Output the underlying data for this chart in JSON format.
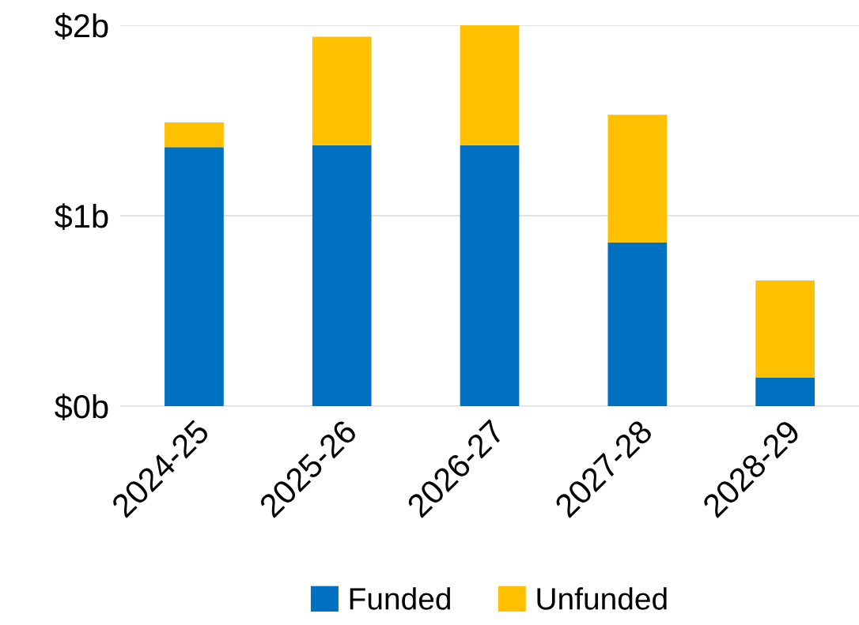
{
  "chart_data": {
    "type": "bar",
    "stacked": true,
    "categories": [
      "2024-25",
      "2025-26",
      "2026-27",
      "2027-28",
      "2028-29"
    ],
    "series": [
      {
        "name": "Funded",
        "color": "#0070c0",
        "values": [
          1.36,
          1.37,
          1.37,
          0.86,
          0.15
        ]
      },
      {
        "name": "Unfunded",
        "color": "#ffc000",
        "values": [
          0.13,
          0.57,
          0.63,
          0.67,
          0.51
        ]
      }
    ],
    "ylim": [
      0,
      2
    ],
    "yticks": [
      {
        "value": 0,
        "label": "$0b"
      },
      {
        "value": 1,
        "label": "$1b"
      },
      {
        "value": 2,
        "label": "$2b"
      }
    ],
    "grid": "y",
    "legend": "bottom"
  }
}
